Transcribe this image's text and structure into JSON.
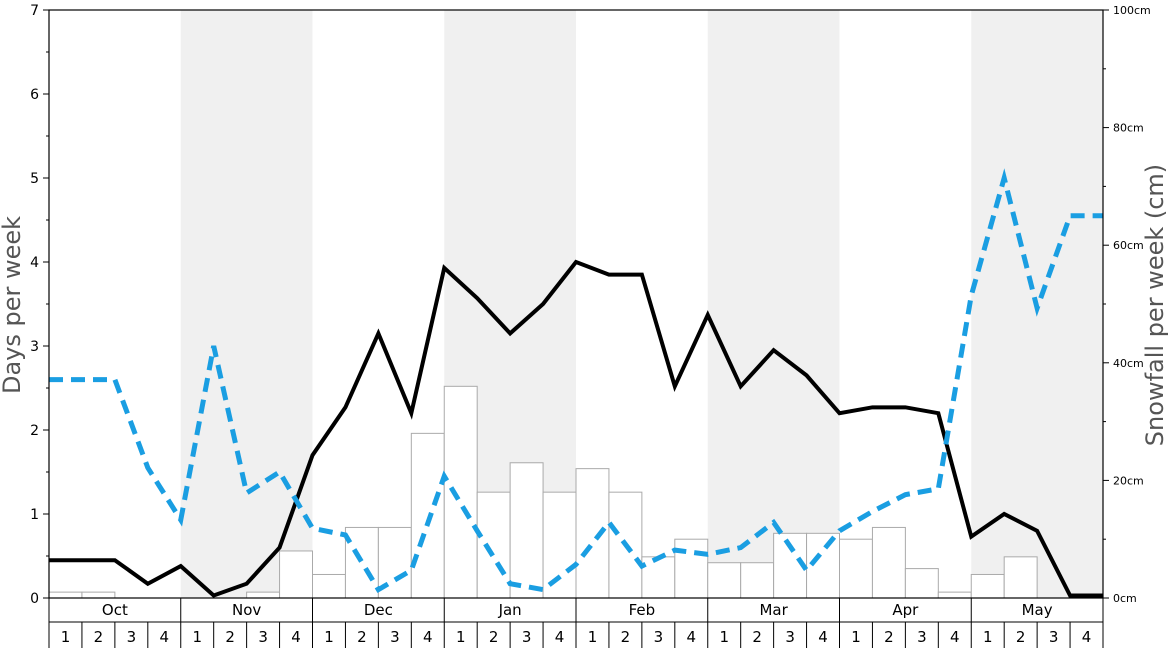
{
  "chart_data": {
    "type": "bar+line",
    "left_axis": {
      "label": "Days per week",
      "ylim": [
        0,
        7
      ],
      "ticks": [
        "0",
        "1",
        "2",
        "3",
        "4",
        "5",
        "6",
        "7"
      ]
    },
    "right_axis": {
      "label": "Snowfall per week (cm)",
      "ylim": [
        0,
        100
      ],
      "ticks": [
        "0cm",
        "20cm",
        "40cm",
        "60cm",
        "80cm",
        "100cm"
      ]
    },
    "months": [
      "Oct",
      "Nov",
      "Dec",
      "Jan",
      "Feb",
      "Mar",
      "Apr",
      "May"
    ],
    "week_labels": [
      "1",
      "2",
      "3",
      "4"
    ],
    "grid": false,
    "legend": "none",
    "series": [
      {
        "kind": "bar",
        "axis": "right",
        "color": "#ffffff",
        "stroke": "#aaaaaa",
        "values": [
          1,
          1,
          0,
          0,
          0,
          0,
          1,
          8,
          4,
          12,
          12,
          28,
          36,
          18,
          23,
          18,
          22,
          18,
          7,
          10,
          6,
          6,
          11,
          11,
          10,
          12,
          5,
          1,
          4,
          7,
          0,
          0
        ]
      },
      {
        "kind": "line",
        "axis": "left",
        "color": "#000000",
        "style": "solid",
        "values": [
          0.45,
          0.45,
          0.45,
          0.17,
          0.38,
          0.03,
          0.17,
          0.6,
          1.7,
          2.27,
          3.15,
          2.2,
          3.93,
          3.57,
          3.15,
          3.5,
          4.0,
          3.85,
          3.85,
          2.52,
          3.37,
          2.52,
          2.95,
          2.65,
          2.2,
          2.27,
          2.27,
          2.2,
          0.73,
          1.0,
          0.8,
          0.03
        ]
      },
      {
        "kind": "line",
        "axis": "left",
        "color": "#1a9ee2",
        "style": "dashed",
        "values": [
          2.6,
          2.6,
          2.6,
          1.55,
          0.93,
          3.0,
          1.25,
          1.5,
          0.83,
          0.75,
          0.1,
          0.33,
          1.45,
          0.8,
          0.17,
          0.1,
          0.4,
          0.9,
          0.38,
          0.57,
          0.52,
          0.6,
          0.9,
          0.33,
          0.8,
          1.03,
          1.23,
          1.3,
          3.6,
          5.0,
          3.45,
          4.55
        ]
      }
    ]
  }
}
